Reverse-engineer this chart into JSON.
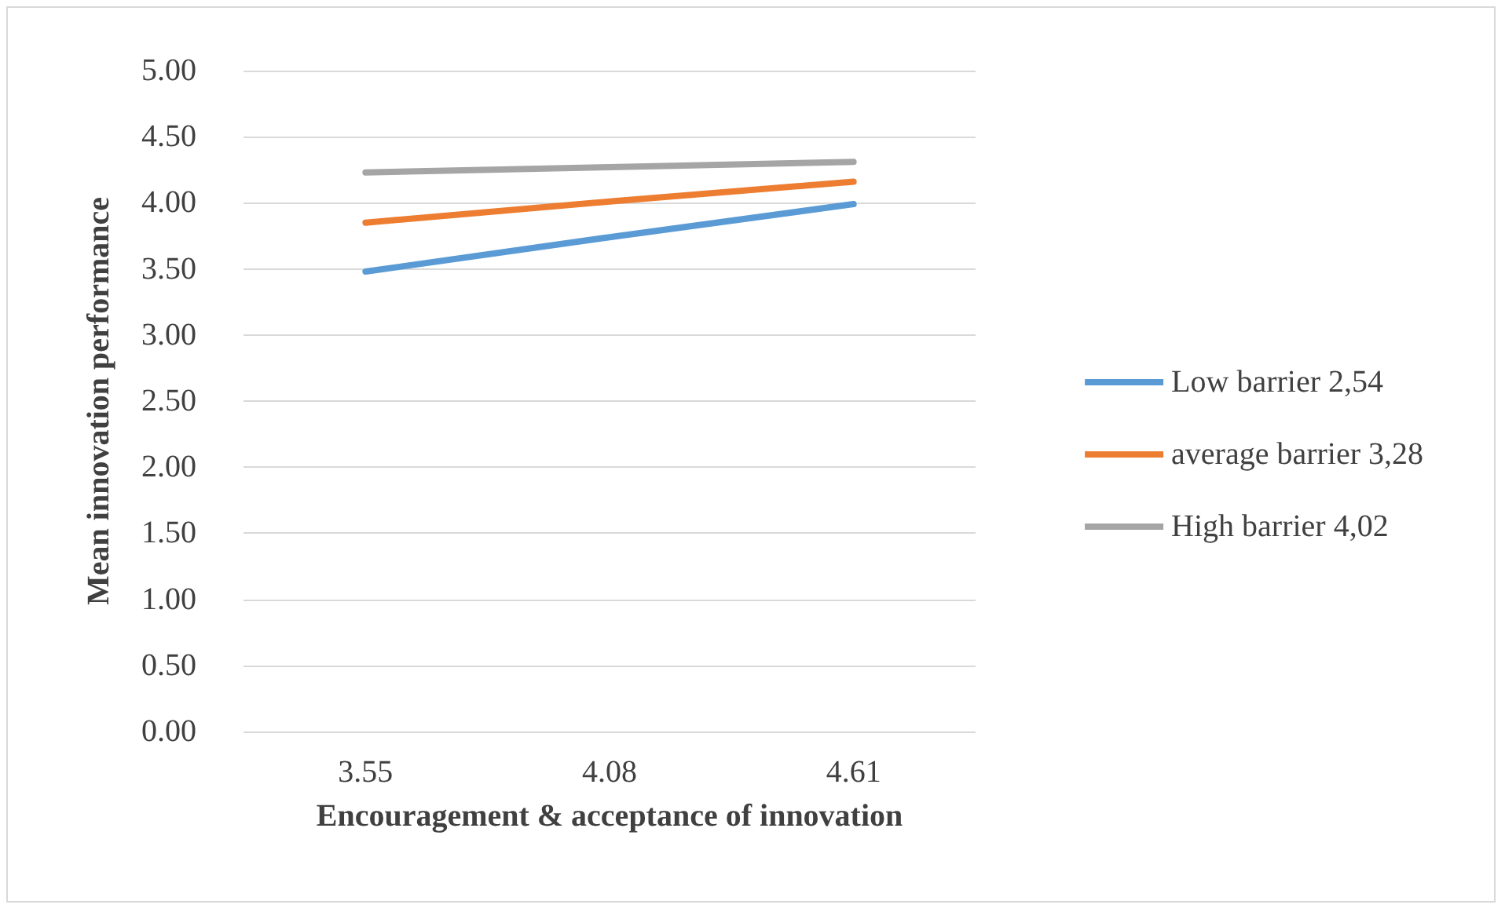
{
  "chart_data": {
    "type": "line",
    "xlabel": "Encouragement & acceptance of innovation",
    "ylabel": "Mean innovation performance",
    "categories": [
      "3.55",
      "4.08",
      "4.61"
    ],
    "series": [
      {
        "name": "Low barrier 2,54",
        "color": "#5b9bd5",
        "values": [
          3.48,
          3.74,
          3.99
        ]
      },
      {
        "name": "average barrier 3,28",
        "color": "#ed7d31",
        "values": [
          3.85,
          4.01,
          4.16
        ]
      },
      {
        "name": "High barrier 4,02",
        "color": "#a5a5a5",
        "values": [
          4.23,
          4.27,
          4.31
        ]
      }
    ],
    "ylim": [
      0,
      5
    ],
    "yticks": [
      {
        "value": 0,
        "label": "0.00"
      },
      {
        "value": 0.5,
        "label": "0.50"
      },
      {
        "value": 1,
        "label": "1.00"
      },
      {
        "value": 1.5,
        "label": "1.50"
      },
      {
        "value": 2,
        "label": "2.00"
      },
      {
        "value": 2.5,
        "label": "2.50"
      },
      {
        "value": 3,
        "label": "3.00"
      },
      {
        "value": 3.5,
        "label": "3.50"
      },
      {
        "value": 4,
        "label": "4.00"
      },
      {
        "value": 4.5,
        "label": "4.50"
      },
      {
        "value": 5,
        "label": "5.00"
      }
    ],
    "grid": "y",
    "legend": "right",
    "marker": "none",
    "line_style": "solid"
  }
}
